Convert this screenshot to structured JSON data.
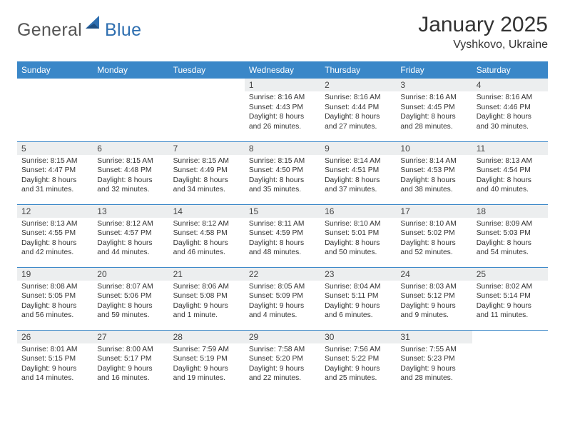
{
  "logo": {
    "general": "General",
    "blue": "Blue"
  },
  "title": "January 2025",
  "location": "Vyshkovo, Ukraine",
  "colors": {
    "header_bg": "#3a87c8",
    "header_text": "#ffffff",
    "daynum_bg": "#eceeef",
    "row_border": "#3a87c8",
    "logo_gray": "#555555",
    "logo_blue": "#2f6fb0"
  },
  "day_headers": [
    "Sunday",
    "Monday",
    "Tuesday",
    "Wednesday",
    "Thursday",
    "Friday",
    "Saturday"
  ],
  "weeks": [
    [
      {
        "n": "",
        "sr": "",
        "ss": "",
        "dl": ""
      },
      {
        "n": "",
        "sr": "",
        "ss": "",
        "dl": ""
      },
      {
        "n": "",
        "sr": "",
        "ss": "",
        "dl": ""
      },
      {
        "n": "1",
        "sr": "Sunrise: 8:16 AM",
        "ss": "Sunset: 4:43 PM",
        "dl": "Daylight: 8 hours and 26 minutes."
      },
      {
        "n": "2",
        "sr": "Sunrise: 8:16 AM",
        "ss": "Sunset: 4:44 PM",
        "dl": "Daylight: 8 hours and 27 minutes."
      },
      {
        "n": "3",
        "sr": "Sunrise: 8:16 AM",
        "ss": "Sunset: 4:45 PM",
        "dl": "Daylight: 8 hours and 28 minutes."
      },
      {
        "n": "4",
        "sr": "Sunrise: 8:16 AM",
        "ss": "Sunset: 4:46 PM",
        "dl": "Daylight: 8 hours and 30 minutes."
      }
    ],
    [
      {
        "n": "5",
        "sr": "Sunrise: 8:15 AM",
        "ss": "Sunset: 4:47 PM",
        "dl": "Daylight: 8 hours and 31 minutes."
      },
      {
        "n": "6",
        "sr": "Sunrise: 8:15 AM",
        "ss": "Sunset: 4:48 PM",
        "dl": "Daylight: 8 hours and 32 minutes."
      },
      {
        "n": "7",
        "sr": "Sunrise: 8:15 AM",
        "ss": "Sunset: 4:49 PM",
        "dl": "Daylight: 8 hours and 34 minutes."
      },
      {
        "n": "8",
        "sr": "Sunrise: 8:15 AM",
        "ss": "Sunset: 4:50 PM",
        "dl": "Daylight: 8 hours and 35 minutes."
      },
      {
        "n": "9",
        "sr": "Sunrise: 8:14 AM",
        "ss": "Sunset: 4:51 PM",
        "dl": "Daylight: 8 hours and 37 minutes."
      },
      {
        "n": "10",
        "sr": "Sunrise: 8:14 AM",
        "ss": "Sunset: 4:53 PM",
        "dl": "Daylight: 8 hours and 38 minutes."
      },
      {
        "n": "11",
        "sr": "Sunrise: 8:13 AM",
        "ss": "Sunset: 4:54 PM",
        "dl": "Daylight: 8 hours and 40 minutes."
      }
    ],
    [
      {
        "n": "12",
        "sr": "Sunrise: 8:13 AM",
        "ss": "Sunset: 4:55 PM",
        "dl": "Daylight: 8 hours and 42 minutes."
      },
      {
        "n": "13",
        "sr": "Sunrise: 8:12 AM",
        "ss": "Sunset: 4:57 PM",
        "dl": "Daylight: 8 hours and 44 minutes."
      },
      {
        "n": "14",
        "sr": "Sunrise: 8:12 AM",
        "ss": "Sunset: 4:58 PM",
        "dl": "Daylight: 8 hours and 46 minutes."
      },
      {
        "n": "15",
        "sr": "Sunrise: 8:11 AM",
        "ss": "Sunset: 4:59 PM",
        "dl": "Daylight: 8 hours and 48 minutes."
      },
      {
        "n": "16",
        "sr": "Sunrise: 8:10 AM",
        "ss": "Sunset: 5:01 PM",
        "dl": "Daylight: 8 hours and 50 minutes."
      },
      {
        "n": "17",
        "sr": "Sunrise: 8:10 AM",
        "ss": "Sunset: 5:02 PM",
        "dl": "Daylight: 8 hours and 52 minutes."
      },
      {
        "n": "18",
        "sr": "Sunrise: 8:09 AM",
        "ss": "Sunset: 5:03 PM",
        "dl": "Daylight: 8 hours and 54 minutes."
      }
    ],
    [
      {
        "n": "19",
        "sr": "Sunrise: 8:08 AM",
        "ss": "Sunset: 5:05 PM",
        "dl": "Daylight: 8 hours and 56 minutes."
      },
      {
        "n": "20",
        "sr": "Sunrise: 8:07 AM",
        "ss": "Sunset: 5:06 PM",
        "dl": "Daylight: 8 hours and 59 minutes."
      },
      {
        "n": "21",
        "sr": "Sunrise: 8:06 AM",
        "ss": "Sunset: 5:08 PM",
        "dl": "Daylight: 9 hours and 1 minute."
      },
      {
        "n": "22",
        "sr": "Sunrise: 8:05 AM",
        "ss": "Sunset: 5:09 PM",
        "dl": "Daylight: 9 hours and 4 minutes."
      },
      {
        "n": "23",
        "sr": "Sunrise: 8:04 AM",
        "ss": "Sunset: 5:11 PM",
        "dl": "Daylight: 9 hours and 6 minutes."
      },
      {
        "n": "24",
        "sr": "Sunrise: 8:03 AM",
        "ss": "Sunset: 5:12 PM",
        "dl": "Daylight: 9 hours and 9 minutes."
      },
      {
        "n": "25",
        "sr": "Sunrise: 8:02 AM",
        "ss": "Sunset: 5:14 PM",
        "dl": "Daylight: 9 hours and 11 minutes."
      }
    ],
    [
      {
        "n": "26",
        "sr": "Sunrise: 8:01 AM",
        "ss": "Sunset: 5:15 PM",
        "dl": "Daylight: 9 hours and 14 minutes."
      },
      {
        "n": "27",
        "sr": "Sunrise: 8:00 AM",
        "ss": "Sunset: 5:17 PM",
        "dl": "Daylight: 9 hours and 16 minutes."
      },
      {
        "n": "28",
        "sr": "Sunrise: 7:59 AM",
        "ss": "Sunset: 5:19 PM",
        "dl": "Daylight: 9 hours and 19 minutes."
      },
      {
        "n": "29",
        "sr": "Sunrise: 7:58 AM",
        "ss": "Sunset: 5:20 PM",
        "dl": "Daylight: 9 hours and 22 minutes."
      },
      {
        "n": "30",
        "sr": "Sunrise: 7:56 AM",
        "ss": "Sunset: 5:22 PM",
        "dl": "Daylight: 9 hours and 25 minutes."
      },
      {
        "n": "31",
        "sr": "Sunrise: 7:55 AM",
        "ss": "Sunset: 5:23 PM",
        "dl": "Daylight: 9 hours and 28 minutes."
      },
      {
        "n": "",
        "sr": "",
        "ss": "",
        "dl": ""
      }
    ]
  ]
}
